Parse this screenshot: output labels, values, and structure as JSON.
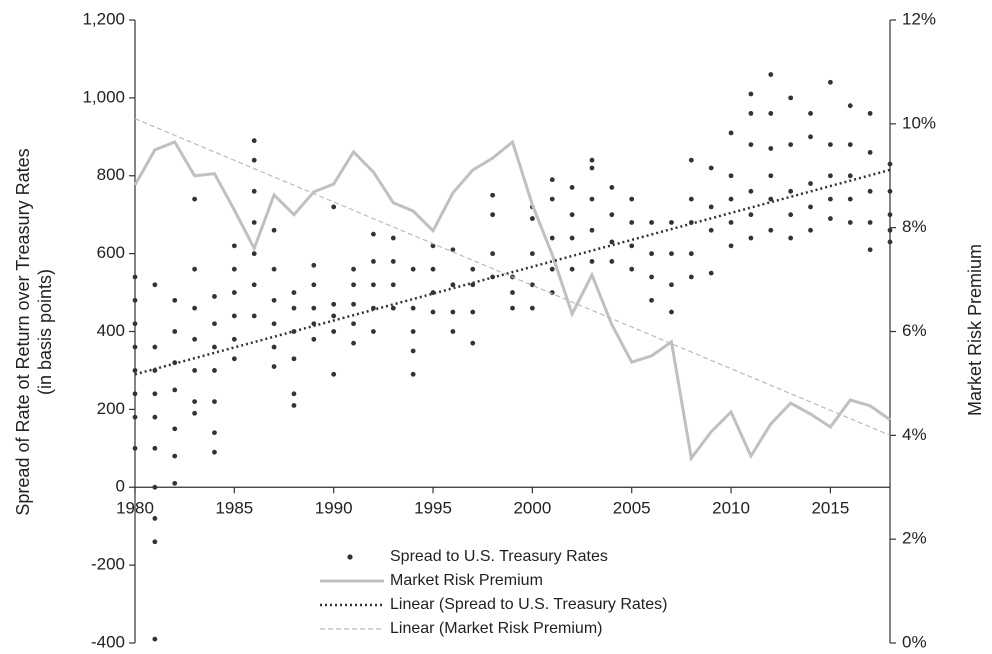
{
  "chart_data": {
    "type": "scatter",
    "y_label": [
      "Spread of Rate ot Return over Treasury Rates",
      "(in basis points)"
    ],
    "y2_label": "Market Risk Premium",
    "xlim": [
      1980,
      2018
    ],
    "xticks": [
      1980,
      1985,
      1990,
      1995,
      2000,
      2005,
      2010,
      2015
    ],
    "ylim": [
      -400,
      1200
    ],
    "yticks": [
      -400,
      -200,
      0,
      200,
      400,
      600,
      800,
      {
        "value": 1000,
        "label": "1,000"
      },
      {
        "value": 1200,
        "label": "1,200"
      }
    ],
    "y2lim": [
      0,
      12
    ],
    "y2ticks": [
      {
        "value": 0,
        "label": "0%"
      },
      {
        "value": 2,
        "label": "2%"
      },
      {
        "value": 4,
        "label": "4%"
      },
      {
        "value": 6,
        "label": "6%"
      },
      {
        "value": 8,
        "label": "8%"
      },
      {
        "value": 10,
        "label": "10%"
      },
      {
        "value": 12,
        "label": "12%"
      }
    ],
    "series": [
      {
        "name": "Spread to U.S. Treasury Rates",
        "style": "markers",
        "color": "#333333",
        "x": [
          1980,
          1981,
          1982,
          1983,
          1984,
          1985,
          1986,
          1987,
          1988,
          1989,
          1990,
          1991,
          1992,
          1993,
          1994,
          1995,
          1996,
          1997,
          1998,
          1999,
          2000,
          2001,
          2002,
          2003,
          2004,
          2005,
          2006,
          2007,
          2008,
          2009,
          2010,
          2011,
          2012,
          2013,
          2014,
          2015,
          2016,
          2017,
          2018
        ],
        "values": [
          [
            100,
            180,
            240,
            300,
            360,
            420,
            480,
            540
          ],
          [
            -390,
            -140,
            -80,
            0,
            100,
            180,
            240,
            300,
            360,
            520
          ],
          [
            10,
            80,
            150,
            250,
            320,
            400,
            480
          ],
          [
            190,
            220,
            300,
            380,
            460,
            560,
            740
          ],
          [
            90,
            140,
            220,
            300,
            360,
            420,
            490
          ],
          [
            330,
            380,
            440,
            500,
            560,
            620
          ],
          [
            440,
            520,
            600,
            680,
            760,
            840,
            890
          ],
          [
            310,
            360,
            420,
            480,
            560,
            660
          ],
          [
            210,
            240,
            330,
            400,
            460,
            500
          ],
          [
            380,
            420,
            460,
            520,
            570
          ],
          [
            290,
            400,
            440,
            470,
            720
          ],
          [
            370,
            420,
            470,
            520,
            560
          ],
          [
            400,
            460,
            520,
            580,
            650
          ],
          [
            460,
            520,
            580,
            640
          ],
          [
            290,
            350,
            400,
            460,
            560
          ],
          [
            450,
            500,
            560,
            620
          ],
          [
            400,
            450,
            520,
            610
          ],
          [
            370,
            450,
            520,
            560
          ],
          [
            540,
            600,
            700,
            750
          ],
          [
            460,
            500,
            540
          ],
          [
            460,
            520,
            600,
            690,
            720
          ],
          [
            500,
            560,
            640,
            740,
            790
          ],
          [
            560,
            640,
            700,
            770
          ],
          [
            580,
            660,
            740,
            820,
            840
          ],
          [
            580,
            630,
            700,
            770
          ],
          [
            560,
            620,
            680,
            740
          ],
          [
            480,
            540,
            600,
            680
          ],
          [
            450,
            520,
            600,
            680
          ],
          [
            540,
            600,
            680,
            740,
            840
          ],
          [
            550,
            660,
            720,
            820
          ],
          [
            620,
            680,
            740,
            800,
            910
          ],
          [
            640,
            700,
            760,
            880,
            960,
            1010
          ],
          [
            660,
            740,
            800,
            870,
            960,
            1060
          ],
          [
            640,
            700,
            760,
            880,
            1000
          ],
          [
            660,
            720,
            780,
            900,
            960
          ],
          [
            690,
            740,
            800,
            880,
            1040
          ],
          [
            680,
            740,
            800,
            880,
            980
          ],
          [
            610,
            680,
            760,
            860,
            960
          ],
          [
            630,
            660,
            700,
            760,
            830
          ]
        ]
      },
      {
        "name": "Market Risk Premium",
        "style": "solid",
        "color": "#c0c0c0",
        "axis": "y2",
        "x": [
          1980,
          1981,
          1982,
          1983,
          1984,
          1985,
          1986,
          1987,
          1988,
          1989,
          1990,
          1991,
          1992,
          1993,
          1994,
          1995,
          1996,
          1997,
          1998,
          1999,
          2000,
          2001,
          2002,
          2003,
          2004,
          2005,
          2006,
          2007,
          2008,
          2009,
          2010,
          2011,
          2012,
          2013,
          2014,
          2015,
          2016,
          2017,
          2018
        ],
        "values": [
          8.82,
          9.5,
          9.65,
          9.0,
          9.04,
          8.34,
          7.6,
          8.63,
          8.25,
          8.69,
          8.84,
          9.46,
          9.07,
          8.48,
          8.32,
          7.94,
          8.67,
          9.11,
          9.34,
          9.65,
          8.44,
          7.48,
          6.34,
          7.09,
          6.13,
          5.41,
          5.53,
          5.8,
          3.56,
          4.07,
          4.45,
          3.6,
          4.22,
          4.62,
          4.41,
          4.16,
          4.68,
          4.57,
          4.3
        ]
      },
      {
        "name": "Linear (Spread to U.S. Treasury Rates)",
        "style": "dotted",
        "color": "#333333",
        "x": [
          1980,
          2018
        ],
        "values": [
          290,
          815
        ]
      },
      {
        "name": "Linear (Market Risk Premium)",
        "style": "dashed",
        "color": "#bbbbbb",
        "axis": "y2",
        "x": [
          1980,
          2018
        ],
        "values": [
          10.1,
          4.0
        ]
      }
    ]
  }
}
